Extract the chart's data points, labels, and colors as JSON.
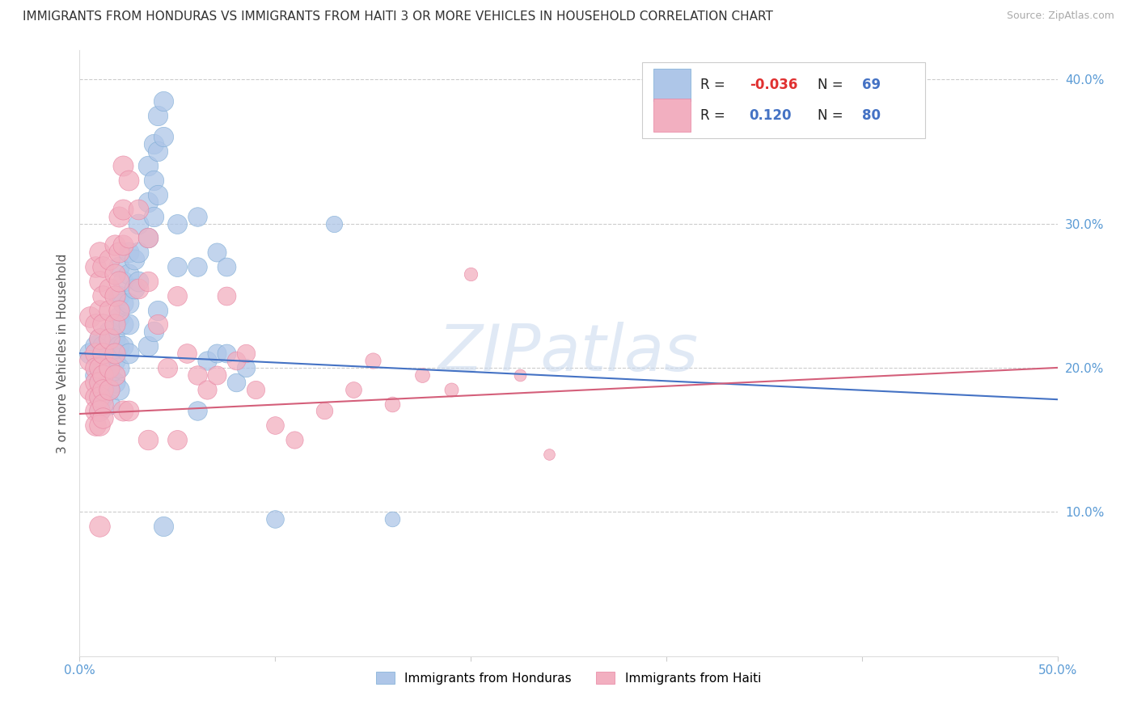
{
  "title": "IMMIGRANTS FROM HONDURAS VS IMMIGRANTS FROM HAITI 3 OR MORE VEHICLES IN HOUSEHOLD CORRELATION CHART",
  "source": "Source: ZipAtlas.com",
  "ylabel": "3 or more Vehicles in Household",
  "xlim": [
    0.0,
    0.5
  ],
  "ylim": [
    0.0,
    0.42
  ],
  "xticks": [
    0.0,
    0.1,
    0.2,
    0.3,
    0.4,
    0.5
  ],
  "yticks": [
    0.1,
    0.2,
    0.3,
    0.4
  ],
  "xtick_labels": [
    "0.0%",
    "",
    "",
    "",
    "",
    "50.0%"
  ],
  "ytick_labels": [
    "10.0%",
    "20.0%",
    "30.0%",
    "40.0%"
  ],
  "legend_labels": [
    "Immigrants from Honduras",
    "Immigrants from Haiti"
  ],
  "blue_R": "-0.036",
  "blue_N": "69",
  "pink_R": "0.120",
  "pink_N": "80",
  "blue_color": "#aec6e8",
  "pink_color": "#f2afc0",
  "blue_edge_color": "#7aaad4",
  "pink_edge_color": "#e882a0",
  "blue_line_color": "#4472c4",
  "pink_line_color": "#d45f7a",
  "watermark": "ZIPatlas",
  "blue_line_y_start": 0.21,
  "blue_line_y_end": 0.178,
  "pink_line_y_start": 0.168,
  "pink_line_y_end": 0.2,
  "blue_points": [
    [
      0.005,
      0.21
    ],
    [
      0.008,
      0.215
    ],
    [
      0.008,
      0.195
    ],
    [
      0.01,
      0.22
    ],
    [
      0.01,
      0.2
    ],
    [
      0.01,
      0.19
    ],
    [
      0.01,
      0.18
    ],
    [
      0.01,
      0.17
    ],
    [
      0.012,
      0.215
    ],
    [
      0.012,
      0.2
    ],
    [
      0.012,
      0.19
    ],
    [
      0.012,
      0.18
    ],
    [
      0.015,
      0.225
    ],
    [
      0.015,
      0.21
    ],
    [
      0.015,
      0.195
    ],
    [
      0.015,
      0.185
    ],
    [
      0.015,
      0.175
    ],
    [
      0.018,
      0.22
    ],
    [
      0.018,
      0.205
    ],
    [
      0.018,
      0.19
    ],
    [
      0.02,
      0.27
    ],
    [
      0.02,
      0.25
    ],
    [
      0.02,
      0.235
    ],
    [
      0.02,
      0.215
    ],
    [
      0.02,
      0.2
    ],
    [
      0.02,
      0.185
    ],
    [
      0.022,
      0.26
    ],
    [
      0.022,
      0.245
    ],
    [
      0.022,
      0.23
    ],
    [
      0.022,
      0.215
    ],
    [
      0.025,
      0.28
    ],
    [
      0.025,
      0.265
    ],
    [
      0.025,
      0.245
    ],
    [
      0.025,
      0.23
    ],
    [
      0.025,
      0.21
    ],
    [
      0.028,
      0.275
    ],
    [
      0.028,
      0.255
    ],
    [
      0.03,
      0.3
    ],
    [
      0.03,
      0.28
    ],
    [
      0.03,
      0.26
    ],
    [
      0.035,
      0.34
    ],
    [
      0.035,
      0.315
    ],
    [
      0.035,
      0.29
    ],
    [
      0.035,
      0.215
    ],
    [
      0.038,
      0.355
    ],
    [
      0.038,
      0.33
    ],
    [
      0.038,
      0.305
    ],
    [
      0.038,
      0.225
    ],
    [
      0.04,
      0.375
    ],
    [
      0.04,
      0.35
    ],
    [
      0.04,
      0.32
    ],
    [
      0.04,
      0.24
    ],
    [
      0.043,
      0.385
    ],
    [
      0.043,
      0.36
    ],
    [
      0.043,
      0.09
    ],
    [
      0.05,
      0.3
    ],
    [
      0.05,
      0.27
    ],
    [
      0.06,
      0.305
    ],
    [
      0.06,
      0.27
    ],
    [
      0.06,
      0.17
    ],
    [
      0.065,
      0.205
    ],
    [
      0.07,
      0.28
    ],
    [
      0.07,
      0.21
    ],
    [
      0.075,
      0.27
    ],
    [
      0.075,
      0.21
    ],
    [
      0.08,
      0.19
    ],
    [
      0.085,
      0.2
    ],
    [
      0.1,
      0.095
    ],
    [
      0.13,
      0.3
    ],
    [
      0.16,
      0.095
    ]
  ],
  "pink_points": [
    [
      0.005,
      0.235
    ],
    [
      0.005,
      0.205
    ],
    [
      0.005,
      0.185
    ],
    [
      0.008,
      0.27
    ],
    [
      0.008,
      0.23
    ],
    [
      0.008,
      0.21
    ],
    [
      0.008,
      0.2
    ],
    [
      0.008,
      0.19
    ],
    [
      0.008,
      0.18
    ],
    [
      0.008,
      0.17
    ],
    [
      0.008,
      0.16
    ],
    [
      0.01,
      0.28
    ],
    [
      0.01,
      0.26
    ],
    [
      0.01,
      0.24
    ],
    [
      0.01,
      0.22
    ],
    [
      0.01,
      0.2
    ],
    [
      0.01,
      0.19
    ],
    [
      0.01,
      0.18
    ],
    [
      0.01,
      0.17
    ],
    [
      0.01,
      0.16
    ],
    [
      0.01,
      0.09
    ],
    [
      0.012,
      0.27
    ],
    [
      0.012,
      0.25
    ],
    [
      0.012,
      0.23
    ],
    [
      0.012,
      0.21
    ],
    [
      0.012,
      0.195
    ],
    [
      0.012,
      0.185
    ],
    [
      0.012,
      0.175
    ],
    [
      0.012,
      0.165
    ],
    [
      0.015,
      0.275
    ],
    [
      0.015,
      0.255
    ],
    [
      0.015,
      0.24
    ],
    [
      0.015,
      0.22
    ],
    [
      0.015,
      0.2
    ],
    [
      0.015,
      0.185
    ],
    [
      0.018,
      0.285
    ],
    [
      0.018,
      0.265
    ],
    [
      0.018,
      0.25
    ],
    [
      0.018,
      0.23
    ],
    [
      0.018,
      0.21
    ],
    [
      0.018,
      0.195
    ],
    [
      0.02,
      0.305
    ],
    [
      0.02,
      0.28
    ],
    [
      0.02,
      0.26
    ],
    [
      0.02,
      0.24
    ],
    [
      0.022,
      0.34
    ],
    [
      0.022,
      0.31
    ],
    [
      0.022,
      0.285
    ],
    [
      0.022,
      0.17
    ],
    [
      0.025,
      0.33
    ],
    [
      0.025,
      0.29
    ],
    [
      0.025,
      0.17
    ],
    [
      0.03,
      0.31
    ],
    [
      0.03,
      0.255
    ],
    [
      0.035,
      0.29
    ],
    [
      0.035,
      0.26
    ],
    [
      0.035,
      0.15
    ],
    [
      0.04,
      0.23
    ],
    [
      0.045,
      0.2
    ],
    [
      0.05,
      0.25
    ],
    [
      0.05,
      0.15
    ],
    [
      0.055,
      0.21
    ],
    [
      0.06,
      0.195
    ],
    [
      0.065,
      0.185
    ],
    [
      0.07,
      0.195
    ],
    [
      0.075,
      0.25
    ],
    [
      0.08,
      0.205
    ],
    [
      0.085,
      0.21
    ],
    [
      0.09,
      0.185
    ],
    [
      0.1,
      0.16
    ],
    [
      0.11,
      0.15
    ],
    [
      0.125,
      0.17
    ],
    [
      0.14,
      0.185
    ],
    [
      0.15,
      0.205
    ],
    [
      0.16,
      0.175
    ],
    [
      0.175,
      0.195
    ],
    [
      0.19,
      0.185
    ],
    [
      0.2,
      0.265
    ],
    [
      0.225,
      0.195
    ],
    [
      0.24,
      0.14
    ]
  ]
}
